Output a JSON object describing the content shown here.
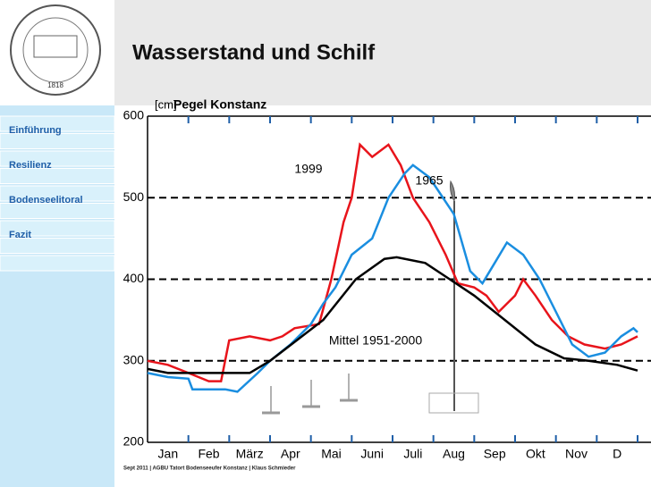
{
  "header": {
    "title": "Wasserstand und Schilf",
    "logo_year": "1818"
  },
  "nav": [
    "Einführung",
    "Resilienz",
    "Bodenseelitoral",
    "Fazit"
  ],
  "footer": "Sept 2011 | AGBU Tatort Bodenseeufer Konstanz | Klaus Schmieder",
  "chart_data": {
    "type": "line",
    "title": "Pegel Konstanz",
    "y_unit": "[cm]",
    "categories": [
      "Jan",
      "Feb",
      "März",
      "Apr",
      "Mai",
      "Juni",
      "Juli",
      "Aug",
      "Sep",
      "Okt",
      "Nov",
      "D"
    ],
    "xlim": [
      0,
      12
    ],
    "ylim": [
      200,
      600
    ],
    "yticks": [
      200,
      300,
      400,
      500,
      600
    ],
    "grid": true,
    "annotations": [
      "1999",
      "1965",
      "Mittel 1951-2000"
    ],
    "series": [
      {
        "name": "1999",
        "color": "#e8141b",
        "x": [
          0,
          0.5,
          1,
          1.5,
          1.8,
          2,
          2.5,
          3,
          3.3,
          3.6,
          4.2,
          4.5,
          4.8,
          5,
          5.2,
          5.5,
          5.9,
          6.2,
          6.5,
          6.9,
          7.3,
          7.6,
          8,
          8.3,
          8.6,
          9,
          9.2,
          9.5,
          9.9,
          10.3,
          10.7,
          11.2,
          11.6,
          12
        ],
        "values": [
          300,
          295,
          285,
          275,
          275,
          325,
          330,
          325,
          330,
          340,
          345,
          400,
          470,
          500,
          565,
          550,
          565,
          540,
          500,
          470,
          430,
          395,
          390,
          380,
          360,
          380,
          400,
          380,
          350,
          330,
          320,
          315,
          320,
          330
        ]
      },
      {
        "name": "1965",
        "color": "#1a8ee0",
        "x": [
          0,
          0.5,
          1,
          1.1,
          1.9,
          2.2,
          2.7,
          3,
          3.5,
          4,
          4.3,
          4.6,
          5,
          5.5,
          5.9,
          6.3,
          6.5,
          6.9,
          7.5,
          7.9,
          8.2,
          8.5,
          8.8,
          9.2,
          9.6,
          10,
          10.4,
          10.8,
          11.2,
          11.6,
          11.9,
          12
        ],
        "values": [
          285,
          280,
          278,
          265,
          265,
          262,
          285,
          300,
          320,
          345,
          370,
          390,
          430,
          450,
          500,
          530,
          540,
          525,
          480,
          410,
          395,
          420,
          445,
          430,
          400,
          360,
          320,
          305,
          310,
          330,
          340,
          335
        ]
      },
      {
        "name": "Mittel 1951-2000",
        "color": "#000000",
        "x": [
          0,
          0.5,
          2.5,
          3,
          4.3,
          5.1,
          5.8,
          6.1,
          6.8,
          7.4,
          8,
          8.75,
          9.5,
          10.2,
          10.8,
          11.5,
          12
        ],
        "values": [
          290,
          285,
          285,
          300,
          350,
          400,
          425,
          427,
          420,
          400,
          380,
          350,
          320,
          303,
          300,
          295,
          288
        ]
      }
    ]
  }
}
